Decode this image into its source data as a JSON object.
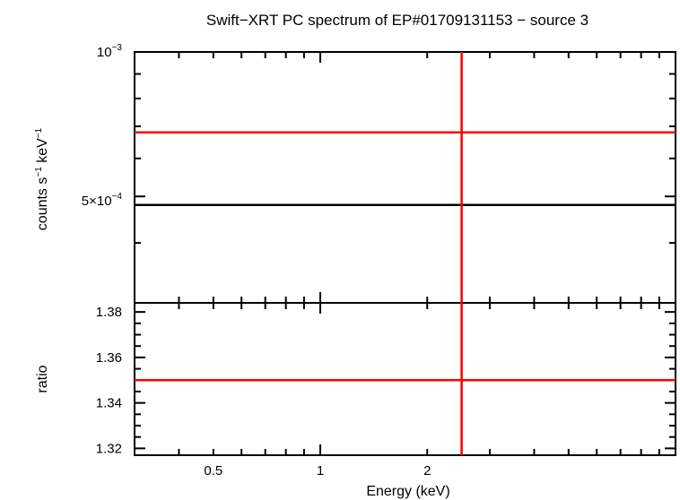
{
  "chart_data": [
    {
      "type": "line",
      "panel": "spectrum",
      "title": "Swift−XRT PC spectrum of EP#01709131153 − source 3",
      "ylabel_main": "counts s",
      "ylabel_exp1": "−1",
      "ylabel_mid": " keV",
      "ylabel_exp2": "−1",
      "yscale": "log",
      "xscale": "log",
      "xlim": [
        0.3,
        10
      ],
      "ylim": [
        0.0003,
        0.001
      ],
      "ytick_labels": [
        {
          "value": 0.001,
          "mantissa": "",
          "base": "10",
          "exponent": "−3"
        },
        {
          "value": 0.0005,
          "mantissa": "5×",
          "base": "10",
          "exponent": "−4"
        }
      ],
      "series": [
        {
          "name": "model",
          "color": "#000000",
          "kind": "hline",
          "y": 0.00048
        },
        {
          "name": "data",
          "color": "#ff0000",
          "kind": "hline",
          "y": 0.00068
        },
        {
          "name": "data-error",
          "color": "#ff0000",
          "kind": "vline",
          "x": 2.5
        }
      ]
    },
    {
      "type": "line",
      "panel": "ratio",
      "ylabel": "ratio",
      "xlabel": "Energy (keV)",
      "xscale": "log",
      "xlim": [
        0.3,
        10
      ],
      "ylim": [
        1.317,
        1.384
      ],
      "ytick_values": [
        1.32,
        1.34,
        1.36,
        1.38
      ],
      "ytick_labels": [
        "1.32",
        "1.34",
        "1.36",
        "1.38"
      ],
      "xtick_values": [
        0.5,
        1,
        2
      ],
      "xtick_labels": [
        "0.5",
        "1",
        "2"
      ],
      "series": [
        {
          "name": "ratio",
          "color": "#ff0000",
          "kind": "hline",
          "y": 1.35
        },
        {
          "name": "ratio-error",
          "color": "#ff0000",
          "kind": "vline",
          "x": 2.5
        }
      ]
    }
  ]
}
